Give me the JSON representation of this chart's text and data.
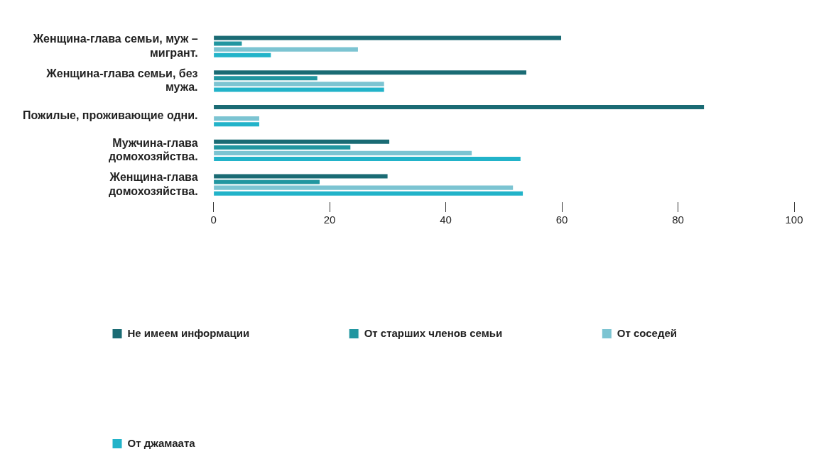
{
  "chart_data": {
    "type": "bar",
    "orientation": "horizontal",
    "categories": [
      "Женщина-глава семьи, муж – мигрант.",
      "Женщина-глава семьи, без мужа.",
      "Пожилые, проживающие одни.",
      "Мужчина-глава домохозяйства.",
      "Женщина-глава домохозяйства."
    ],
    "series": [
      {
        "name": "Не имеем информации",
        "color": "#1a6b74",
        "values": [
          60,
          54,
          84.6,
          30.4,
          30.1
        ]
      },
      {
        "name": "От старших членов семьи",
        "color": "#2196a0",
        "values": [
          5,
          18,
          0,
          23.7,
          18.4
        ]
      },
      {
        "name": "От соседей",
        "color": "#7cc4d2",
        "values": [
          25,
          29.5,
          8,
          44.6,
          51.7
        ]
      },
      {
        "name": "От джамаата",
        "color": "#22b3c9",
        "values": [
          10,
          29.5,
          8,
          53,
          53.4
        ]
      }
    ],
    "xlim": [
      0,
      100
    ],
    "xticks": [
      0,
      20,
      40,
      60,
      80,
      100
    ],
    "grid": false,
    "legend": "bottom left"
  }
}
